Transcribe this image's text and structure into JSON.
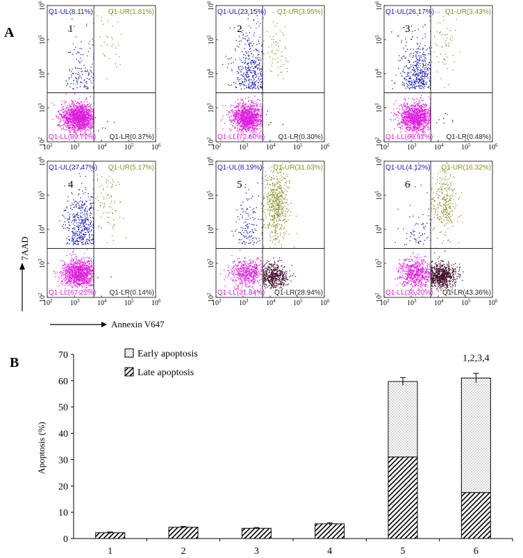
{
  "chart_data": [
    {
      "panel": "A",
      "type": "scatter",
      "xlabel": "Annexin V647",
      "ylabel": "7AAD",
      "x_axis_scale": "log",
      "xlim": [
        100,
        1000000
      ],
      "ylim": [
        100,
        1000000
      ],
      "x_ticks": [
        2,
        3,
        4,
        5,
        6
      ],
      "y_ticks": [
        2,
        3,
        4,
        5,
        6
      ],
      "tick_base": "10",
      "plots": [
        {
          "id": "1",
          "label": "1",
          "UL": "Q1-UL(8.11%)",
          "UR": "Q1-UR(1.81%)",
          "LL": "Q1-LL(89.71%)",
          "LR": "Q1-LR(0.37%)",
          "ul": 8.11,
          "ur": 1.81,
          "ll": 89.71,
          "lr": 0.37
        },
        {
          "id": "2",
          "label": "2",
          "UL": "Q1-UL(23.15%)",
          "UR": "Q1-UR(3.95%)",
          "LL": "Q1-LL(72.60%)",
          "LR": "Q1-LR(0.30%)",
          "ul": 23.15,
          "ur": 3.95,
          "ll": 72.6,
          "lr": 0.3
        },
        {
          "id": "3",
          "label": "3",
          "UL": "Q1-UL(26.17%)",
          "UR": "Q1-UR(3.43%)",
          "LL": "Q1-LL(69.92%)",
          "LR": "Q1-LR(0.48%)",
          "ul": 26.17,
          "ur": 3.43,
          "ll": 69.92,
          "lr": 0.48
        },
        {
          "id": "4",
          "label": "4",
          "UL": "Q1-UL(27.47%)",
          "UR": "Q1-UR(5.17%)",
          "LL": "Q1-LL(67.22%)",
          "LR": "Q1-LR(0.14%)",
          "ul": 27.47,
          "ur": 5.17,
          "ll": 67.22,
          "lr": 0.14
        },
        {
          "id": "5",
          "label": "5",
          "UL": "Q1-UL(8.19%)",
          "UR": "Q1-UR(31.03%)",
          "LL": "Q1-LL(31.84%)",
          "LR": "Q1-LR(28.94%)",
          "ul": 8.19,
          "ur": 31.03,
          "ll": 31.84,
          "lr": 28.94
        },
        {
          "id": "6",
          "label": "6",
          "UL": "Q1-UL(4.12%)",
          "UR": "Q1-UR(16.32%)",
          "LL": "Q1-LL(36.20%)",
          "LR": "Q1-LR(43.36%)",
          "ul": 4.12,
          "ur": 16.32,
          "ll": 36.2,
          "lr": 43.36
        }
      ],
      "quadrant_colors": {
        "UL": "#1a1ab4",
        "UR": "#8c8c2a",
        "LL": "#dc1edc",
        "LR": "#3c0a28"
      }
    },
    {
      "panel": "B",
      "type": "bar",
      "stacked": true,
      "categories": [
        "1",
        "2",
        "3",
        "4",
        "5",
        "6"
      ],
      "series": [
        {
          "name": "Late apoptosis",
          "values": [
            2.2,
            4.3,
            3.9,
            5.6,
            31.0,
            17.5
          ],
          "pattern": "diagonal"
        },
        {
          "name": "Early apoptosis",
          "values": [
            0,
            0,
            0,
            0,
            28.7,
            43.5
          ],
          "pattern": "dots"
        }
      ],
      "error": [
        0.3,
        0.3,
        0.3,
        0.4,
        1.5,
        1.8
      ],
      "annotation": {
        "category": "6",
        "text": "1,2,3,4"
      },
      "ylabel": "Apoptosis (%)",
      "ylim": [
        0,
        70
      ],
      "yticks": [
        0,
        10,
        20,
        30,
        40,
        50,
        60,
        70
      ]
    }
  ],
  "panel_labels": {
    "a": "A",
    "b": "B"
  }
}
